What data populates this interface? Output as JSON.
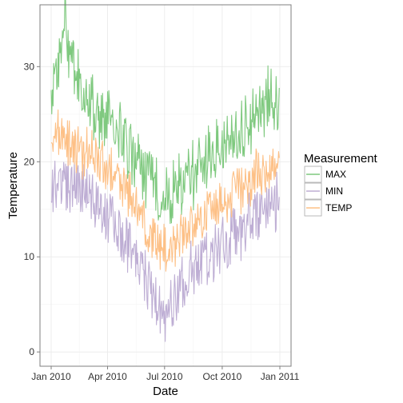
{
  "chart_data": {
    "type": "line",
    "title": "",
    "xlabel": "Date",
    "ylabel": "Temperature",
    "x_range": [
      "2010-01-01",
      "2011-01-01"
    ],
    "x_ticks": [
      {
        "date": "2010-01-01",
        "label": "Jan 2010"
      },
      {
        "date": "2010-04-01",
        "label": "Apr 2010"
      },
      {
        "date": "2010-07-01",
        "label": "Jul 2010"
      },
      {
        "date": "2010-10-01",
        "label": "Oct 2010"
      },
      {
        "date": "2011-01-01",
        "label": "Jan 2011"
      }
    ],
    "ylim": [
      -1.5,
      36.5
    ],
    "y_ticks": [
      0,
      10,
      20,
      30
    ],
    "grid": true,
    "legend": {
      "title": "Measurement",
      "position": "right"
    },
    "series": [
      {
        "name": "MAX",
        "color": "#7fc97f",
        "anchors": [
          [
            "2010-01-01",
            26.0
          ],
          [
            "2010-01-05",
            28.5
          ],
          [
            "2010-01-10",
            27.0
          ],
          [
            "2010-01-15",
            32.0
          ],
          [
            "2010-01-22",
            35.0
          ],
          [
            "2010-02-01",
            30.0
          ],
          [
            "2010-02-15",
            28.0
          ],
          [
            "2010-03-01",
            25.5
          ],
          [
            "2010-03-20",
            25.0
          ],
          [
            "2010-04-05",
            24.0
          ],
          [
            "2010-04-25",
            22.5
          ],
          [
            "2010-05-15",
            20.0
          ],
          [
            "2010-06-01",
            18.5
          ],
          [
            "2010-06-15",
            17.5
          ],
          [
            "2010-07-01",
            16.0
          ],
          [
            "2010-07-15",
            17.0
          ],
          [
            "2010-08-01",
            18.0
          ],
          [
            "2010-08-20",
            19.0
          ],
          [
            "2010-09-10",
            20.5
          ],
          [
            "2010-10-01",
            21.5
          ],
          [
            "2010-10-20",
            22.5
          ],
          [
            "2010-11-10",
            24.0
          ],
          [
            "2010-12-01",
            25.5
          ],
          [
            "2010-12-15",
            26.5
          ],
          [
            "2011-01-01",
            24.5
          ]
        ]
      },
      {
        "name": "MIN",
        "color": "#beaed4",
        "anchors": [
          [
            "2010-01-01",
            18.0
          ],
          [
            "2010-01-15",
            17.5
          ],
          [
            "2010-02-01",
            17.5
          ],
          [
            "2010-02-20",
            17.0
          ],
          [
            "2010-03-10",
            16.5
          ],
          [
            "2010-04-01",
            15.0
          ],
          [
            "2010-04-20",
            13.0
          ],
          [
            "2010-05-10",
            11.0
          ],
          [
            "2010-06-01",
            8.0
          ],
          [
            "2010-06-20",
            5.0
          ],
          [
            "2010-07-05",
            4.0
          ],
          [
            "2010-07-20",
            6.0
          ],
          [
            "2010-08-10",
            8.0
          ],
          [
            "2010-09-01",
            10.0
          ],
          [
            "2010-09-20",
            11.0
          ],
          [
            "2010-10-10",
            12.0
          ],
          [
            "2010-11-01",
            13.0
          ],
          [
            "2010-11-20",
            14.0
          ],
          [
            "2010-12-10",
            15.0
          ],
          [
            "2011-01-01",
            16.0
          ]
        ]
      },
      {
        "name": "TEMP",
        "color": "#fdc086",
        "anchors": [
          [
            "2010-01-01",
            22.0
          ],
          [
            "2010-01-15",
            23.0
          ],
          [
            "2010-02-01",
            22.0
          ],
          [
            "2010-02-20",
            21.0
          ],
          [
            "2010-03-15",
            20.5
          ],
          [
            "2010-04-05",
            19.0
          ],
          [
            "2010-04-25",
            17.5
          ],
          [
            "2010-05-15",
            15.5
          ],
          [
            "2010-06-01",
            13.0
          ],
          [
            "2010-06-20",
            11.5
          ],
          [
            "2010-07-05",
            10.5
          ],
          [
            "2010-07-20",
            11.5
          ],
          [
            "2010-08-10",
            13.0
          ],
          [
            "2010-09-01",
            14.5
          ],
          [
            "2010-09-25",
            15.5
          ],
          [
            "2010-10-15",
            16.5
          ],
          [
            "2010-11-05",
            17.5
          ],
          [
            "2010-11-25",
            18.5
          ],
          [
            "2010-12-15",
            19.5
          ],
          [
            "2011-01-01",
            20.0
          ]
        ]
      }
    ]
  }
}
